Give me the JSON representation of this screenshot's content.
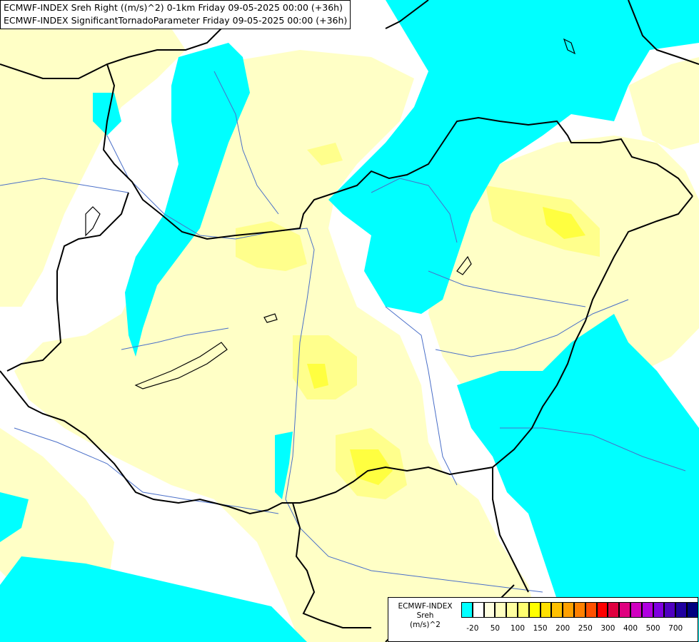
{
  "header": {
    "line1": "ECMWF-INDEX Sreh Right ((m/s)^2) 0-1km Friday 09-05-2025 00:00 (+36h)",
    "line2": "ECMWF-INDEX SignificantTornadoParameter Friday 09-05-2025 00:00 (+36h)"
  },
  "legend": {
    "line1": "ECMWF-INDEX",
    "line2": "Sreh",
    "line3": "(m/s)^2",
    "colors": [
      "#00ffff",
      "#ffffff",
      "#ffffe0",
      "#ffffc0",
      "#ffffa0",
      "#ffff70",
      "#ffff00",
      "#ffe000",
      "#ffc000",
      "#ffa000",
      "#ff8000",
      "#ff5000",
      "#ff0000",
      "#e00040",
      "#e00080",
      "#d000c0",
      "#b000e0",
      "#8000e0",
      "#5000c0",
      "#2000a0",
      "#000080"
    ],
    "ticks": [
      "-20",
      "50",
      "100",
      "150",
      "200",
      "250",
      "300",
      "400",
      "500",
      "700"
    ]
  },
  "map_colors": {
    "cyan": "#00ffff",
    "light_yellow": "#ffffc6",
    "yellow_mid": "#ffff8c",
    "yellow_strong": "#ffff40",
    "border": "#000000",
    "river": "#4a6fc8"
  }
}
